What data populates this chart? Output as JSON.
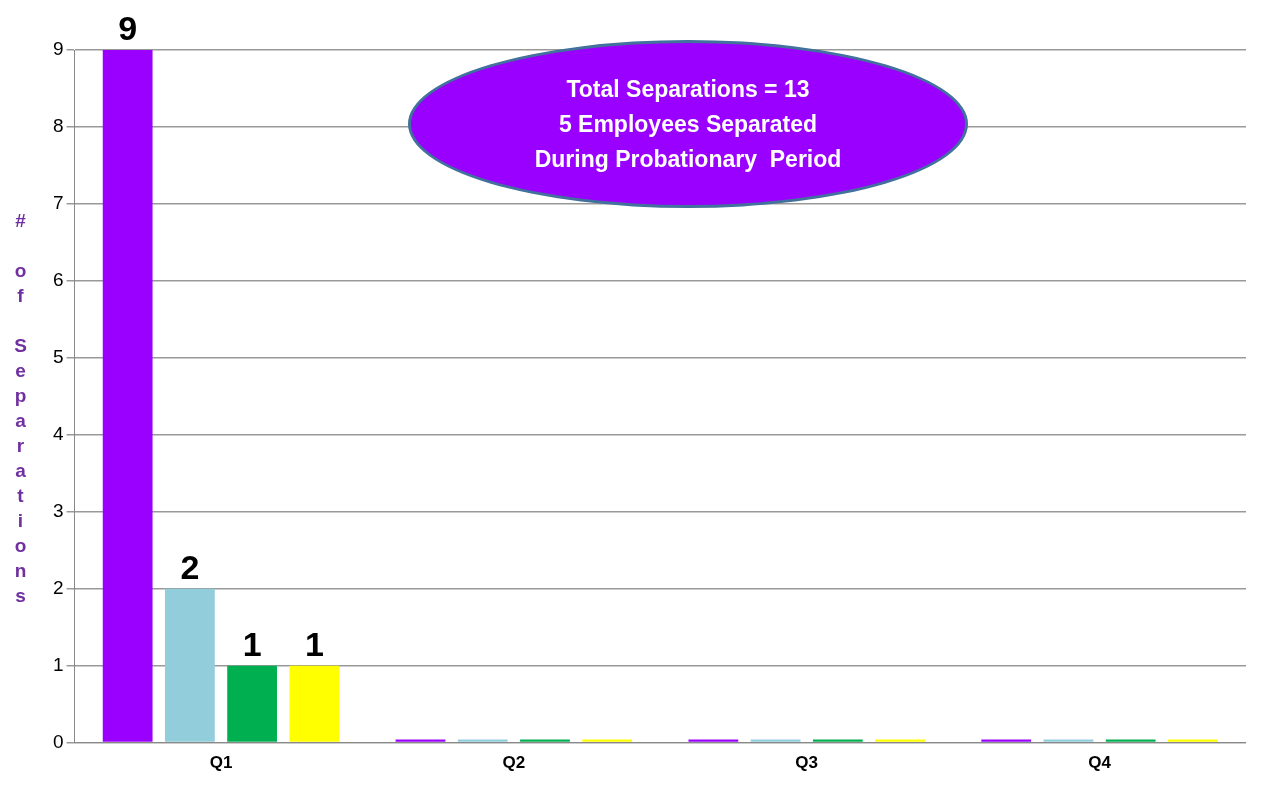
{
  "chart_data": {
    "type": "bar",
    "ylabel": "# of Separations",
    "categories": [
      "Q1",
      "Q2",
      "Q3",
      "Q4"
    ],
    "series": [
      {
        "color": "#9900ff",
        "values": [
          9,
          0,
          0,
          0
        ],
        "value_labels": [
          "9",
          null,
          null,
          null
        ]
      },
      {
        "color": "#92cddc",
        "values": [
          2,
          0,
          0,
          0
        ],
        "value_labels": [
          "2",
          null,
          null,
          null
        ]
      },
      {
        "color": "#00b050",
        "values": [
          1,
          0,
          0,
          0
        ],
        "value_labels": [
          "1",
          null,
          null,
          null
        ]
      },
      {
        "color": "#ffff00",
        "values": [
          1,
          0,
          0,
          0
        ],
        "value_labels": [
          "1",
          null,
          null,
          null
        ]
      }
    ],
    "ylim": [
      0,
      9
    ],
    "yticks": [
      0,
      1,
      2,
      3,
      4,
      5,
      6,
      7,
      8,
      9
    ],
    "grid": "y",
    "legend": false,
    "annotations": [
      "Total Separations = 13",
      "5 Employees Separated",
      "During Probationary  Period"
    ]
  }
}
